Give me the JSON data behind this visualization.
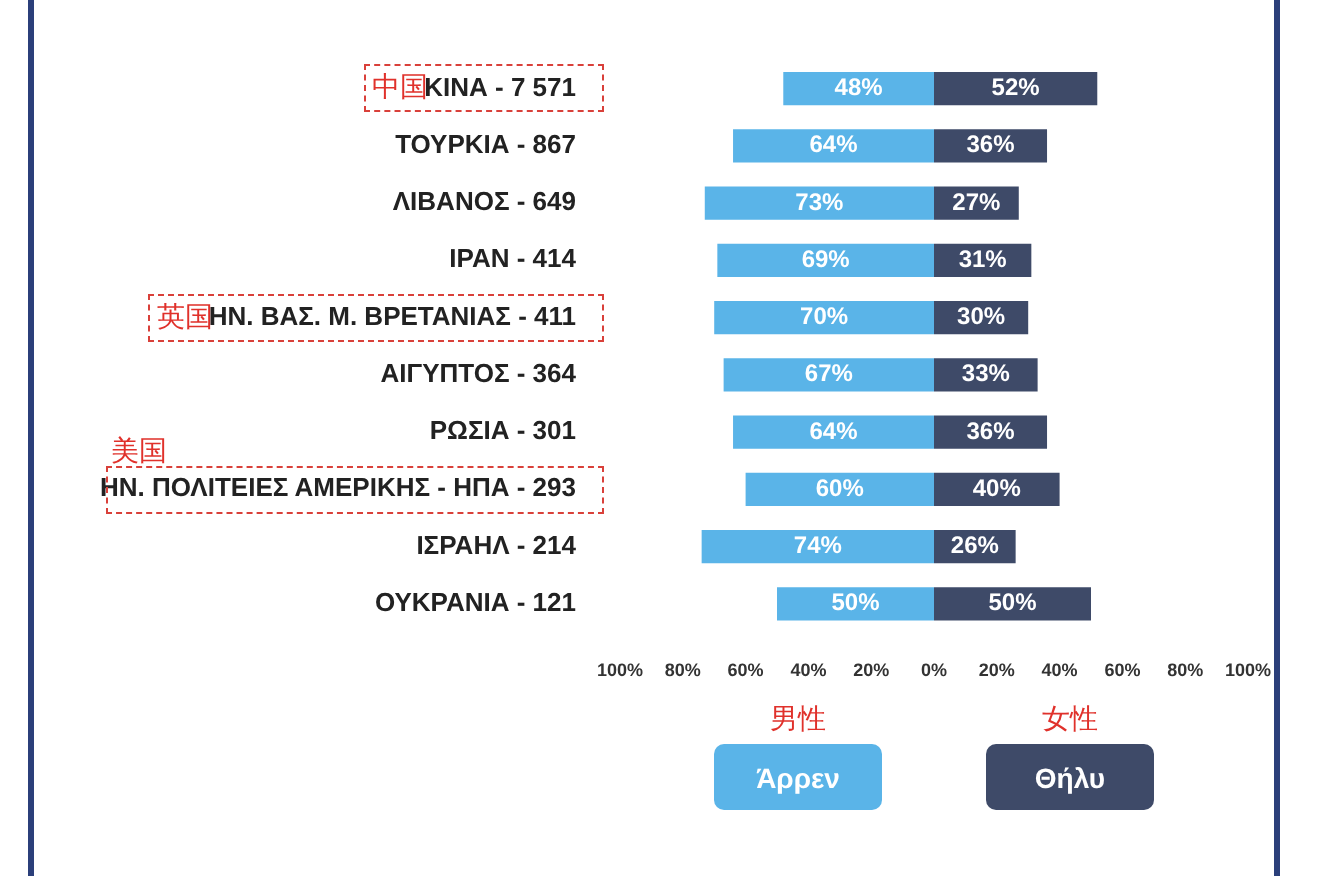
{
  "chart_data": {
    "type": "bar",
    "orientation": "horizontal",
    "categories": [
      "ΚΙΝΑ - 7 571",
      "ΤΟΥΡΚΙΑ - 867",
      "ΛΙΒΑΝΟΣ - 649",
      "ΙΡΑΝ - 414",
      "ΗΝ. ΒΑΣ. Μ. ΒΡΕΤΑΝΙΑΣ - 411",
      "ΑΙΓΥΠΤΟΣ - 364",
      "ΡΩΣΙΑ - 301",
      "ΗΝ. ΠΟΛΙΤΕΙΕΣ ΑΜΕΡΙΚΗΣ - ΗΠΑ - 293",
      "ΙΣΡΑΗΛ - 214",
      "ΟΥΚΡΑΝΙΑ - 121"
    ],
    "series": [
      {
        "name": "Άρρεν",
        "color": "#5ab4e8",
        "values": [
          48,
          64,
          73,
          69,
          70,
          67,
          64,
          60,
          74,
          50
        ],
        "base": [
          -48,
          -64,
          -73,
          -69,
          -70,
          -67,
          -64,
          -60,
          -74,
          -50
        ],
        "value_labels": [
          "48%",
          "64%",
          "73%",
          "69%",
          "70%",
          "67%",
          "64%",
          "60%",
          "74%",
          "50%"
        ]
      },
      {
        "name": "Θήλυ",
        "color": "#3e4a68",
        "values": [
          52,
          36,
          27,
          31,
          30,
          33,
          36,
          40,
          26,
          50
        ],
        "value_labels": [
          "52%",
          "36%",
          "27%",
          "31%",
          "30%",
          "33%",
          "36%",
          "40%",
          "26%",
          "50%"
        ]
      }
    ],
    "xlim": [
      -100,
      100
    ],
    "xticks": [
      {
        "value": -100,
        "label": "100%"
      },
      {
        "value": -80,
        "label": "80%"
      },
      {
        "value": -60,
        "label": "60%"
      },
      {
        "value": -40,
        "label": "40%"
      },
      {
        "value": -20,
        "label": "20%"
      },
      {
        "value": 0,
        "label": "0%"
      },
      {
        "value": 20,
        "label": "20%"
      },
      {
        "value": 40,
        "label": "40%"
      },
      {
        "value": 60,
        "label": "60%"
      },
      {
        "value": 80,
        "label": "80%"
      },
      {
        "value": 100,
        "label": "100%"
      }
    ],
    "grid": false,
    "legend": "bottom",
    "annotations": [
      "中国",
      "英国",
      "美国",
      "男性",
      "女性"
    ]
  }
}
